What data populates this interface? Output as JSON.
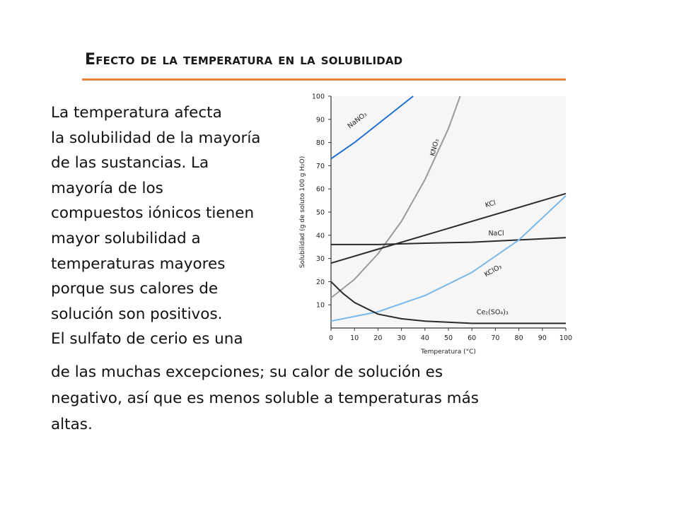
{
  "slide": {
    "title": "Efecto de la temperatura en la solubilidad",
    "lines_narrow": [
      "La temperatura afecta",
      "la solubilidad de la mayoría",
      "de las sustancias. La",
      "mayoría de los",
      "compuestos iónicos tienen",
      "mayor solubilidad a",
      "temperaturas mayores",
      "porque sus calores de",
      "solución son positivos.",
      "El sulfato de cerio es una"
    ],
    "lines_wide": [
      "de las muchas excepciones; su calor de solución es",
      "negativo, así que es menos soluble a temperaturas más",
      "altas."
    ]
  },
  "colors": {
    "title_underline": "#e8833a",
    "series_blue": "#1f6fd0",
    "series_light_blue": "#7ab8ea",
    "series_gray": "#9a9a9a",
    "series_dark": "#2a2a2a"
  },
  "chart_data": {
    "type": "line",
    "xlabel": "Temperatura (°C)",
    "ylabel": "Solubilidad (g de soluto 100 g H₂O)",
    "xlim": [
      0,
      100
    ],
    "ylim": [
      0,
      100
    ],
    "xticks": [
      0,
      10,
      20,
      30,
      40,
      50,
      60,
      70,
      80,
      90,
      100
    ],
    "yticks": [
      10,
      20,
      30,
      40,
      50,
      60,
      70,
      80,
      90,
      100
    ],
    "grid": false,
    "series": [
      {
        "name": "NaNO₃",
        "color": "#1f6fd0",
        "x": [
          0,
          10,
          20,
          30,
          35
        ],
        "y": [
          73,
          80,
          88,
          96,
          100
        ],
        "label_pos": {
          "x": 8,
          "y": 86,
          "angle": -38
        }
      },
      {
        "name": "KNO₃",
        "color": "#9a9a9a",
        "x": [
          0,
          10,
          20,
          30,
          40,
          50,
          55
        ],
        "y": [
          13,
          21,
          32,
          46,
          64,
          86,
          100
        ],
        "label_pos": {
          "x": 44,
          "y": 74,
          "angle": -75
        }
      },
      {
        "name": "KCl",
        "color": "#2a2a2a",
        "x": [
          0,
          20,
          40,
          60,
          80,
          100
        ],
        "y": [
          28,
          34,
          40,
          46,
          52,
          58
        ],
        "label_pos": {
          "x": 66,
          "y": 52,
          "angle": -17
        }
      },
      {
        "name": "NaCl",
        "color": "#2a2a2a",
        "x": [
          0,
          20,
          40,
          60,
          80,
          100
        ],
        "y": [
          36,
          36,
          36.6,
          37,
          38,
          39
        ],
        "label_pos": {
          "x": 67,
          "y": 40,
          "angle": 0
        }
      },
      {
        "name": "KClO₃",
        "color": "#7ab8ea",
        "x": [
          0,
          20,
          40,
          60,
          80,
          100
        ],
        "y": [
          3,
          7,
          14,
          24,
          38,
          57
        ],
        "label_pos": {
          "x": 66,
          "y": 22,
          "angle": -30
        }
      },
      {
        "name": "Ce₂(SO₄)₃",
        "color": "#2a2a2a",
        "x": [
          0,
          5,
          10,
          20,
          30,
          40,
          60,
          80,
          100
        ],
        "y": [
          20,
          15,
          11,
          6,
          4,
          3,
          2,
          2,
          2
        ],
        "label_pos": {
          "x": 62,
          "y": 6,
          "angle": 0
        }
      }
    ]
  }
}
